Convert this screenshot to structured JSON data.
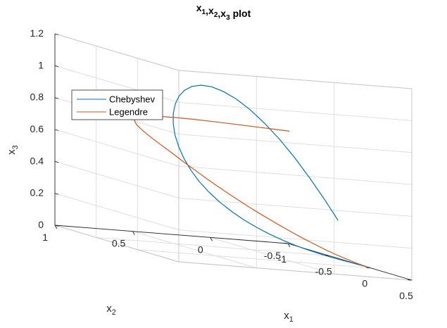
{
  "chart_data": {
    "type": "line",
    "projection": "3d",
    "title": {
      "base": "x",
      "subs": [
        "1",
        "2",
        "3"
      ],
      "suffix": " plot"
    },
    "xlabel": {
      "base": "x",
      "sub": "1"
    },
    "ylabel": {
      "base": "x",
      "sub": "2"
    },
    "zlabel": {
      "base": "x",
      "sub": "3"
    },
    "xlim": [
      -1,
      0.5
    ],
    "ylim": [
      -0.5,
      1
    ],
    "zlim": [
      0,
      1.2
    ],
    "xticks": [
      {
        "v": -1,
        "label": "-1"
      },
      {
        "v": -0.5,
        "label": "-0.5"
      },
      {
        "v": 0,
        "label": "0"
      },
      {
        "v": 0.5,
        "label": "0.5"
      }
    ],
    "yticks": [
      {
        "v": -0.5,
        "label": "-0.5"
      },
      {
        "v": 0,
        "label": "0"
      },
      {
        "v": 0.5,
        "label": "0.5"
      },
      {
        "v": 1,
        "label": "1"
      }
    ],
    "zticks": [
      {
        "v": 0,
        "label": "0"
      },
      {
        "v": 0.2,
        "label": "0.2"
      },
      {
        "v": 0.4,
        "label": "0.4"
      },
      {
        "v": 0.6,
        "label": "0.6"
      },
      {
        "v": 0.8,
        "label": "0.8"
      },
      {
        "v": 1,
        "label": "1"
      },
      {
        "v": 1.2,
        "label": "1.2"
      }
    ],
    "grid": true,
    "box": true,
    "legend_position": "upper-left",
    "series": [
      {
        "name": "Chebyshev",
        "color": "#0072BD",
        "x": [
          0.0,
          -0.087,
          -0.174,
          -0.259,
          -0.342,
          -0.423,
          -0.5,
          -0.574,
          -0.643,
          -0.707,
          -0.766,
          -0.819,
          -0.866,
          -0.906,
          -0.94,
          -0.966,
          -0.985,
          -0.996,
          -1.0,
          -0.996,
          -0.985,
          -0.966,
          -0.94,
          -0.906,
          -0.866,
          -0.819,
          -0.766,
          -0.707,
          -0.643,
          -0.574,
          -0.5,
          -0.423,
          -0.342,
          -0.259,
          -0.174,
          -0.087,
          0.0
        ],
        "y": [
          -0.5,
          -0.497,
          -0.485,
          -0.467,
          -0.441,
          -0.409,
          -0.371,
          -0.328,
          -0.281,
          -0.23,
          -0.177,
          -0.122,
          -0.067,
          -0.012,
          0.04,
          0.089,
          0.133,
          0.171,
          0.203,
          0.229,
          0.246,
          0.256,
          0.257,
          0.251,
          0.236,
          0.214,
          0.184,
          0.148,
          0.107,
          0.06,
          0.01,
          -0.042,
          -0.096,
          -0.149,
          -0.2,
          -0.248,
          -0.291
        ],
        "z": [
          0.0,
          0.0,
          0.001,
          0.003,
          0.007,
          0.014,
          0.024,
          0.038,
          0.057,
          0.081,
          0.111,
          0.146,
          0.188,
          0.236,
          0.29,
          0.349,
          0.414,
          0.482,
          0.553,
          0.625,
          0.696,
          0.764,
          0.826,
          0.881,
          0.925,
          0.958,
          0.976,
          0.978,
          0.962,
          0.929,
          0.877,
          0.808,
          0.723,
          0.625,
          0.516,
          0.4,
          0.282
        ]
      },
      {
        "name": "Legendre",
        "color": "#D95319",
        "x": [
          0.0,
          -0.087,
          -0.174,
          -0.259,
          -0.342,
          -0.423,
          -0.5,
          -0.574,
          -0.643,
          -0.707,
          -0.766,
          -0.819,
          -0.866,
          -0.906,
          -0.94,
          -0.966,
          -0.985,
          -0.996,
          -1.0,
          -0.996,
          -0.985,
          -0.966,
          -0.94,
          -0.906,
          -0.866,
          -0.819,
          -0.766,
          -0.707,
          -0.643,
          -0.574,
          -0.5,
          -0.423,
          -0.342,
          -0.259,
          -0.174,
          -0.087,
          0.0
        ],
        "y": [
          -0.5,
          -0.497,
          -0.488,
          -0.473,
          -0.452,
          -0.427,
          -0.396,
          -0.36,
          -0.321,
          -0.277,
          -0.23,
          -0.18,
          -0.128,
          -0.073,
          -0.017,
          0.04,
          0.097,
          0.155,
          0.213,
          0.272,
          0.332,
          0.39,
          0.446,
          0.498,
          0.544,
          0.582,
          0.61,
          0.626,
          0.627,
          0.613,
          0.581,
          0.531,
          0.463,
          0.377,
          0.274,
          0.155,
          0.022
        ],
        "z": [
          0.0,
          0.002,
          0.008,
          0.018,
          0.031,
          0.048,
          0.069,
          0.093,
          0.12,
          0.15,
          0.182,
          0.216,
          0.253,
          0.291,
          0.33,
          0.37,
          0.41,
          0.449,
          0.488,
          0.526,
          0.562,
          0.596,
          0.628,
          0.658,
          0.685,
          0.709,
          0.731,
          0.75,
          0.766,
          0.779,
          0.79,
          0.799,
          0.806,
          0.811,
          0.814,
          0.816,
          0.817
        ]
      }
    ]
  }
}
